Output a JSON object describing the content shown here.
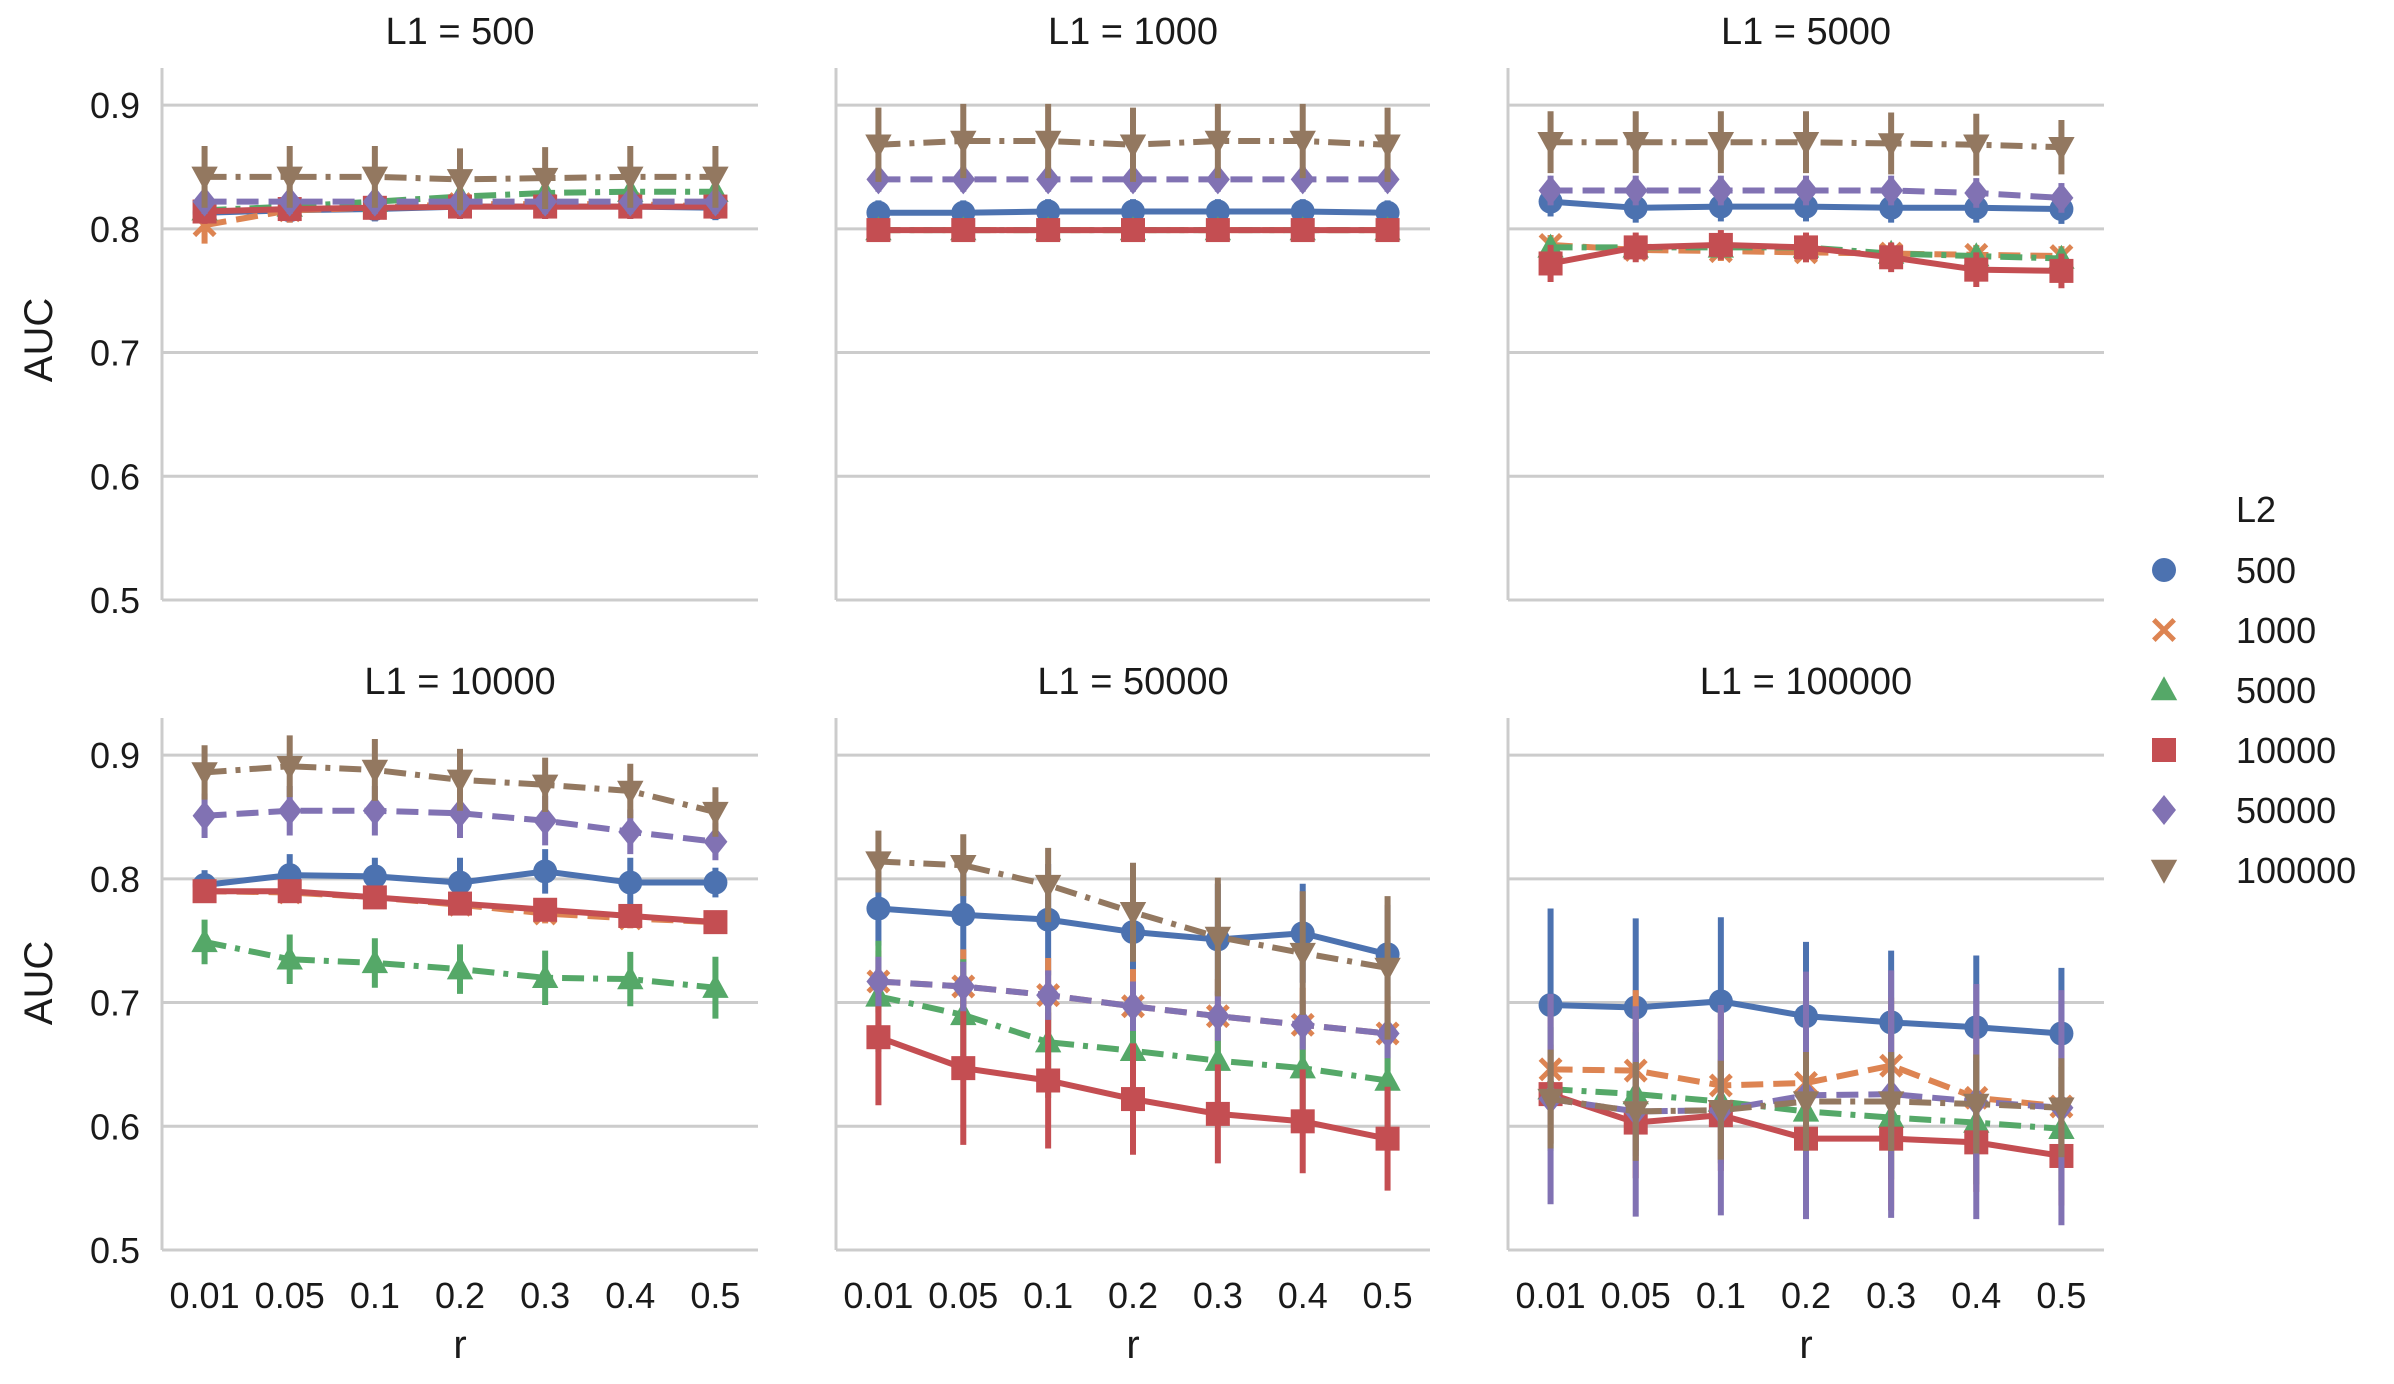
{
  "figure": {
    "legend_title": "L2",
    "xlabel": "r",
    "ylabel": "AUC"
  },
  "chart_data": {
    "type": "line",
    "categories": [
      "0.01",
      "0.05",
      "0.1",
      "0.2",
      "0.3",
      "0.4",
      "0.5"
    ],
    "ylim": [
      0.5,
      0.93
    ],
    "yticks": [
      "0.5",
      "0.6",
      "0.7",
      "0.8",
      "0.9"
    ],
    "grid": "horizontal",
    "legend_position": "right",
    "series_styles": [
      {
        "name": "500",
        "color": "#4c72b0",
        "marker": "circle",
        "dash": "solid"
      },
      {
        "name": "1000",
        "color": "#dd8452",
        "marker": "x",
        "dash": "dashed"
      },
      {
        "name": "5000",
        "color": "#55a868",
        "marker": "triangle",
        "dash": "dashdot"
      },
      {
        "name": "10000",
        "color": "#c44e52",
        "marker": "square",
        "dash": "solid"
      },
      {
        "name": "50000",
        "color": "#8172b3",
        "marker": "diamond",
        "dash": "dashed"
      },
      {
        "name": "100000",
        "color": "#937860",
        "marker": "tri-down",
        "dash": "dashdot"
      }
    ],
    "panels": [
      {
        "title": "L1 = 500",
        "series": [
          {
            "name": "500",
            "values": [
              0.813,
              0.815,
              0.816,
              0.818,
              0.818,
              0.818,
              0.817
            ],
            "err": [
              0.01,
              0.01,
              0.01,
              0.01,
              0.01,
              0.01,
              0.01
            ]
          },
          {
            "name": "1000",
            "values": [
              0.803,
              0.815,
              0.817,
              0.82,
              0.82,
              0.82,
              0.818
            ],
            "err": [
              0.015,
              0.01,
              0.01,
              0.01,
              0.01,
              0.01,
              0.01
            ]
          },
          {
            "name": "5000",
            "values": [
              0.815,
              0.818,
              0.822,
              0.826,
              0.829,
              0.83,
              0.83
            ],
            "err": [
              0.008,
              0.008,
              0.008,
              0.008,
              0.008,
              0.008,
              0.008
            ]
          },
          {
            "name": "10000",
            "values": [
              0.814,
              0.816,
              0.817,
              0.818,
              0.818,
              0.818,
              0.818
            ],
            "err": [
              0.01,
              0.01,
              0.01,
              0.01,
              0.01,
              0.01,
              0.01
            ]
          },
          {
            "name": "50000",
            "values": [
              0.822,
              0.822,
              0.822,
              0.822,
              0.822,
              0.822,
              0.822
            ],
            "err": [
              0.01,
              0.01,
              0.01,
              0.01,
              0.01,
              0.01,
              0.01
            ]
          },
          {
            "name": "100000",
            "values": [
              0.842,
              0.842,
              0.842,
              0.84,
              0.841,
              0.842,
              0.842
            ],
            "err": [
              0.025,
              0.025,
              0.025,
              0.025,
              0.025,
              0.025,
              0.025
            ]
          }
        ]
      },
      {
        "title": "L1 = 1000",
        "series": [
          {
            "name": "500",
            "values": [
              0.813,
              0.813,
              0.814,
              0.814,
              0.814,
              0.814,
              0.813
            ],
            "err": [
              0.01,
              0.01,
              0.01,
              0.01,
              0.01,
              0.01,
              0.01
            ]
          },
          {
            "name": "1000",
            "values": [
              0.799,
              0.799,
              0.799,
              0.799,
              0.799,
              0.799,
              0.799
            ],
            "err": [
              0.006,
              0.006,
              0.006,
              0.006,
              0.006,
              0.006,
              0.006
            ]
          },
          {
            "name": "5000",
            "values": [
              0.799,
              0.799,
              0.799,
              0.799,
              0.799,
              0.799,
              0.799
            ],
            "err": [
              0.006,
              0.006,
              0.006,
              0.006,
              0.006,
              0.006,
              0.006
            ]
          },
          {
            "name": "10000",
            "values": [
              0.799,
              0.799,
              0.799,
              0.799,
              0.799,
              0.799,
              0.799
            ],
            "err": [
              0.006,
              0.006,
              0.006,
              0.006,
              0.006,
              0.006,
              0.006
            ]
          },
          {
            "name": "50000",
            "values": [
              0.84,
              0.84,
              0.84,
              0.84,
              0.84,
              0.84,
              0.84
            ],
            "err": [
              0.01,
              0.01,
              0.01,
              0.01,
              0.01,
              0.01,
              0.01
            ]
          },
          {
            "name": "100000",
            "values": [
              0.868,
              0.871,
              0.871,
              0.868,
              0.871,
              0.871,
              0.868
            ],
            "err": [
              0.03,
              0.03,
              0.03,
              0.03,
              0.03,
              0.03,
              0.03
            ]
          }
        ]
      },
      {
        "title": "L1 = 5000",
        "series": [
          {
            "name": "500",
            "values": [
              0.822,
              0.817,
              0.818,
              0.818,
              0.817,
              0.817,
              0.816
            ],
            "err": [
              0.012,
              0.012,
              0.012,
              0.012,
              0.012,
              0.012,
              0.012
            ]
          },
          {
            "name": "1000",
            "values": [
              0.787,
              0.783,
              0.782,
              0.781,
              0.78,
              0.779,
              0.778
            ],
            "err": [
              0.008,
              0.008,
              0.008,
              0.008,
              0.008,
              0.008,
              0.008
            ]
          },
          {
            "name": "5000",
            "values": [
              0.785,
              0.785,
              0.785,
              0.785,
              0.78,
              0.778,
              0.776
            ],
            "err": [
              0.008,
              0.008,
              0.008,
              0.008,
              0.008,
              0.008,
              0.008
            ]
          },
          {
            "name": "10000",
            "values": [
              0.772,
              0.785,
              0.787,
              0.785,
              0.777,
              0.767,
              0.766
            ],
            "err": [
              0.015,
              0.012,
              0.012,
              0.012,
              0.012,
              0.014,
              0.014
            ]
          },
          {
            "name": "50000",
            "values": [
              0.831,
              0.831,
              0.831,
              0.831,
              0.831,
              0.829,
              0.825
            ],
            "err": [
              0.012,
              0.012,
              0.012,
              0.012,
              0.012,
              0.012,
              0.012
            ]
          },
          {
            "name": "100000",
            "values": [
              0.87,
              0.87,
              0.87,
              0.87,
              0.869,
              0.868,
              0.866
            ],
            "err": [
              0.025,
              0.025,
              0.025,
              0.025,
              0.025,
              0.025,
              0.022
            ]
          }
        ]
      },
      {
        "title": "L1 = 10000",
        "series": [
          {
            "name": "500",
            "values": [
              0.795,
              0.803,
              0.802,
              0.797,
              0.806,
              0.797,
              0.797
            ],
            "err": [
              0.012,
              0.017,
              0.015,
              0.02,
              0.018,
              0.02,
              0.012
            ]
          },
          {
            "name": "1000",
            "values": [
              0.79,
              0.789,
              0.785,
              0.779,
              0.772,
              0.768,
              0.765
            ],
            "err": [
              0.008,
              0.008,
              0.008,
              0.008,
              0.008,
              0.008,
              0.008
            ]
          },
          {
            "name": "5000",
            "values": [
              0.749,
              0.735,
              0.732,
              0.727,
              0.72,
              0.719,
              0.712
            ],
            "err": [
              0.018,
              0.02,
              0.02,
              0.02,
              0.022,
              0.022,
              0.025
            ]
          },
          {
            "name": "10000",
            "values": [
              0.79,
              0.79,
              0.785,
              0.78,
              0.775,
              0.77,
              0.765
            ],
            "err": [
              0.008,
              0.008,
              0.008,
              0.008,
              0.008,
              0.008,
              0.008
            ]
          },
          {
            "name": "50000",
            "values": [
              0.851,
              0.855,
              0.855,
              0.853,
              0.847,
              0.838,
              0.83
            ],
            "err": [
              0.018,
              0.02,
              0.02,
              0.02,
              0.02,
              0.018,
              0.015
            ]
          },
          {
            "name": "100000",
            "values": [
              0.886,
              0.891,
              0.888,
              0.88,
              0.876,
              0.871,
              0.854
            ],
            "err": [
              0.022,
              0.025,
              0.025,
              0.025,
              0.022,
              0.022,
              0.02
            ]
          }
        ]
      },
      {
        "title": "L1 = 50000",
        "series": [
          {
            "name": "500",
            "values": [
              0.776,
              0.771,
              0.767,
              0.757,
              0.751,
              0.756,
              0.739
            ],
            "err": [
              0.03,
              0.04,
              0.045,
              0.045,
              0.045,
              0.04,
              0.04
            ]
          },
          {
            "name": "1000",
            "values": [
              0.717,
              0.713,
              0.706,
              0.697,
              0.689,
              0.682,
              0.675
            ],
            "err": [
              0.025,
              0.03,
              0.03,
              0.03,
              0.03,
              0.03,
              0.03
            ]
          },
          {
            "name": "5000",
            "values": [
              0.705,
              0.69,
              0.668,
              0.661,
              0.653,
              0.647,
              0.637
            ],
            "err": [
              0.045,
              0.045,
              0.045,
              0.045,
              0.045,
              0.045,
              0.045
            ]
          },
          {
            "name": "10000",
            "values": [
              0.672,
              0.647,
              0.637,
              0.622,
              0.61,
              0.604,
              0.59
            ],
            "err": [
              0.055,
              0.062,
              0.055,
              0.045,
              0.04,
              0.042,
              0.042
            ]
          },
          {
            "name": "50000",
            "values": [
              0.717,
              0.713,
              0.706,
              0.697,
              0.689,
              0.682,
              0.675
            ],
            "err": [
              0.02,
              0.02,
              0.02,
              0.02,
              0.02,
              0.02,
              0.02
            ]
          },
          {
            "name": "100000",
            "values": [
              0.814,
              0.811,
              0.795,
              0.773,
              0.753,
              0.74,
              0.728
            ],
            "err": [
              0.025,
              0.025,
              0.03,
              0.04,
              0.048,
              0.05,
              0.058
            ]
          }
        ]
      },
      {
        "title": "L1 = 100000",
        "series": [
          {
            "name": "500",
            "values": [
              0.698,
              0.696,
              0.701,
              0.689,
              0.684,
              0.68,
              0.675
            ],
            "err": [
              0.078,
              0.072,
              0.068,
              0.06,
              0.058,
              0.058,
              0.053
            ]
          },
          {
            "name": "1000",
            "values": [
              0.646,
              0.645,
              0.633,
              0.635,
              0.649,
              0.623,
              0.616
            ],
            "err": [
              0.06,
              0.065,
              0.06,
              0.055,
              0.055,
              0.05,
              0.05
            ]
          },
          {
            "name": "5000",
            "values": [
              0.63,
              0.626,
              0.62,
              0.612,
              0.607,
              0.603,
              0.598
            ],
            "err": [
              0.05,
              0.05,
              0.05,
              0.05,
              0.05,
              0.05,
              0.05
            ]
          },
          {
            "name": "10000",
            "values": [
              0.626,
              0.603,
              0.609,
              0.59,
              0.59,
              0.587,
              0.576
            ],
            "err": [
              0.04,
              0.045,
              0.045,
              0.042,
              0.058,
              0.04,
              0.04
            ]
          },
          {
            "name": "50000",
            "values": [
              0.622,
              0.612,
              0.613,
              0.625,
              0.626,
              0.62,
              0.615
            ],
            "err": [
              0.085,
              0.085,
              0.085,
              0.1,
              0.1,
              0.095,
              0.095
            ]
          },
          {
            "name": "100000",
            "values": [
              0.622,
              0.612,
              0.613,
              0.62,
              0.62,
              0.618,
              0.615
            ],
            "err": [
              0.04,
              0.04,
              0.04,
              0.04,
              0.04,
              0.04,
              0.04
            ]
          }
        ]
      }
    ]
  }
}
